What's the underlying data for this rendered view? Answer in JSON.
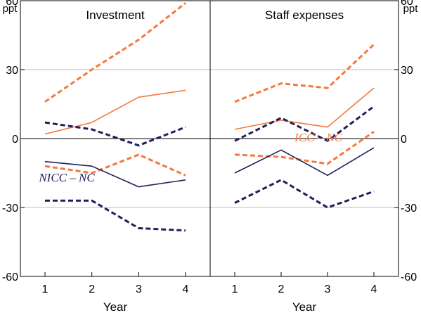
{
  "chart_data": {
    "type": "line",
    "panels": [
      {
        "title": "Investment",
        "x": [
          1,
          2,
          3,
          4
        ],
        "annotation": "NICC – NC",
        "series": [
          {
            "group": "ICC",
            "style": "dashed",
            "color": "#f4793b",
            "values": [
              16,
              30,
              43,
              59
            ]
          },
          {
            "group": "ICC",
            "style": "solid",
            "color": "#f4793b",
            "values": [
              2,
              7,
              18,
              21
            ]
          },
          {
            "group": "ICC",
            "style": "dashed",
            "color": "#f4793b",
            "values": [
              -12,
              -15,
              -7,
              -16
            ]
          },
          {
            "group": "NICC",
            "style": "dashed",
            "color": "#1f1f5c",
            "values": [
              7,
              4,
              -3,
              5
            ]
          },
          {
            "group": "NICC",
            "style": "solid",
            "color": "#1f1f5c",
            "values": [
              -10,
              -12,
              -21,
              -18
            ]
          },
          {
            "group": "NICC",
            "style": "dashed",
            "color": "#1f1f5c",
            "values": [
              -27,
              -27,
              -39,
              -40
            ]
          }
        ]
      },
      {
        "title": "Staff expenses",
        "x": [
          1,
          2,
          3,
          4
        ],
        "annotation": "ICC – NC",
        "series": [
          {
            "group": "ICC",
            "style": "dashed",
            "color": "#f4793b",
            "values": [
              16,
              24,
              22,
              41
            ]
          },
          {
            "group": "ICC",
            "style": "solid",
            "color": "#f4793b",
            "values": [
              4,
              8,
              5,
              22
            ]
          },
          {
            "group": "ICC",
            "style": "dashed",
            "color": "#f4793b",
            "values": [
              -7,
              -8,
              -11,
              3
            ]
          },
          {
            "group": "NICC",
            "style": "dashed",
            "color": "#1f1f5c",
            "values": [
              -1,
              9,
              -1,
              14
            ]
          },
          {
            "group": "NICC",
            "style": "solid",
            "color": "#1f1f5c",
            "values": [
              -15,
              -5,
              -16,
              -4
            ]
          },
          {
            "group": "NICC",
            "style": "dashed",
            "color": "#1f1f5c",
            "values": [
              -28,
              -18,
              -30,
              -23
            ]
          }
        ]
      }
    ],
    "y_unit_left": "ppt",
    "y_unit_right": "ppt",
    "xlabel": "Year",
    "x_ticks": [
      "1",
      "2",
      "3",
      "4"
    ],
    "y_ticks": [
      60,
      30,
      0,
      -30,
      -60
    ],
    "y_tick_labels": [
      "60",
      "30",
      "0",
      "-30",
      "-60"
    ],
    "ylim": [
      -60,
      60
    ],
    "grid": true
  }
}
